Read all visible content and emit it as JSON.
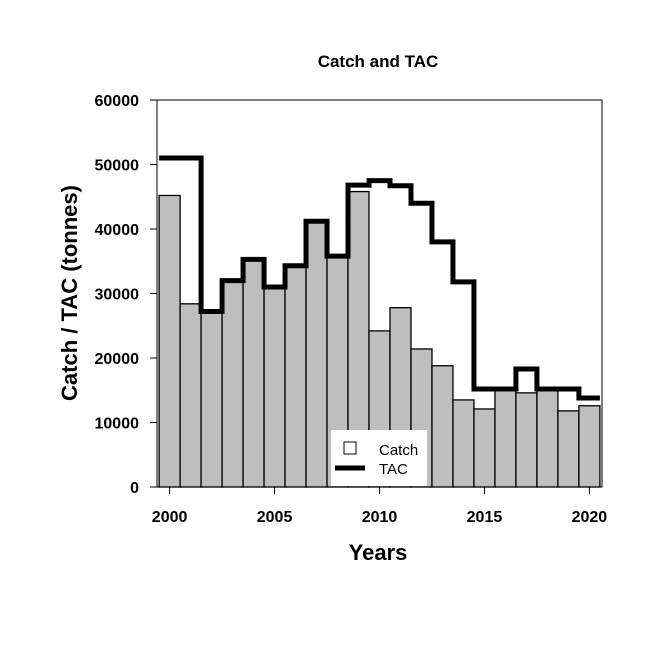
{
  "chart_data": {
    "type": "bar",
    "title": "Catch and TAC",
    "xlabel": "Years",
    "ylabel": "Catch / TAC (tonnes)",
    "xlim": [
      1999.4,
      2020.6
    ],
    "ylim": [
      0,
      60000
    ],
    "x_ticks": [
      2000,
      2005,
      2010,
      2015,
      2020
    ],
    "y_ticks": [
      0,
      10000,
      20000,
      30000,
      40000,
      50000,
      60000
    ],
    "x": [
      2000,
      2001,
      2002,
      2003,
      2004,
      2005,
      2006,
      2007,
      2008,
      2009,
      2010,
      2011,
      2012,
      2013,
      2014,
      2015,
      2016,
      2017,
      2018,
      2019,
      2020
    ],
    "series": [
      {
        "name": "Catch",
        "kind": "bar",
        "color": "#bebebe",
        "values": [
          45200,
          28400,
          27300,
          32000,
          35400,
          31000,
          34300,
          41300,
          35800,
          45800,
          24200,
          27800,
          21400,
          18800,
          13500,
          12100,
          15100,
          14600,
          15000,
          11800,
          12600
        ]
      },
      {
        "name": "TAC",
        "kind": "step",
        "color": "#000000",
        "values": [
          51000,
          51000,
          27200,
          32000,
          35300,
          31000,
          34300,
          41200,
          35800,
          46800,
          47500,
          46700,
          44000,
          38000,
          31800,
          15200,
          15200,
          18300,
          15200,
          15200,
          13800
        ]
      }
    ],
    "legend": {
      "placement": "bottom-center",
      "entries": [
        "Catch",
        "TAC"
      ]
    },
    "grid": false
  }
}
